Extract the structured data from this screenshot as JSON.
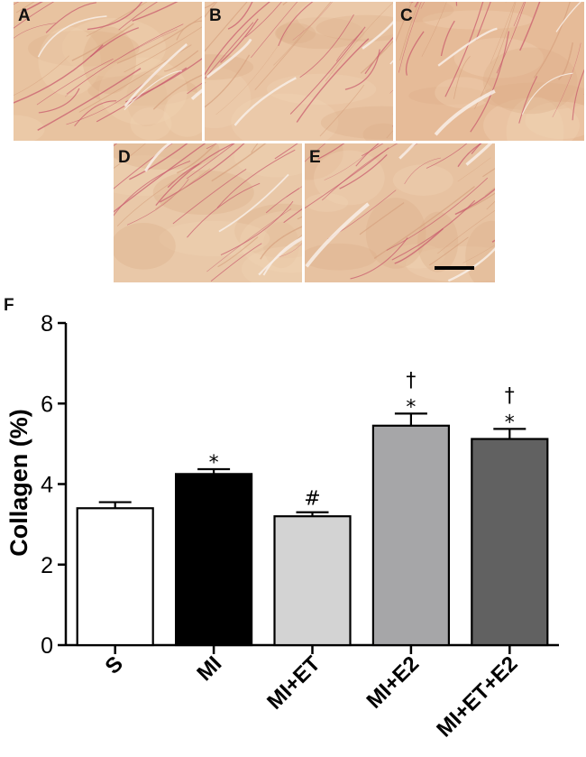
{
  "panels": [
    {
      "letter": "A",
      "tissue_color": "#e8c3a0"
    },
    {
      "letter": "B",
      "tissue_color": "#e9c4a3"
    },
    {
      "letter": "C",
      "tissue_color": "#e6bb98"
    },
    {
      "letter": "D",
      "tissue_color": "#e9c8a8"
    },
    {
      "letter": "E",
      "tissue_color": "#e7c2a1"
    }
  ],
  "figure_label": "F",
  "chart_data": {
    "type": "bar",
    "categories": [
      "S",
      "MI",
      "MI+ET",
      "MI+E2",
      "MI+ET+E2"
    ],
    "values": [
      3.4,
      4.25,
      3.2,
      5.45,
      5.12
    ],
    "errors": [
      0.15,
      0.12,
      0.1,
      0.3,
      0.25
    ],
    "annotations": [
      "",
      "*",
      "#",
      "†\n*",
      "†\n*"
    ],
    "colors": [
      "#ffffff",
      "#000000",
      "#d3d3d3",
      "#a6a6a8",
      "#616161"
    ],
    "ylabel": "Collagen (%)",
    "ylim": [
      0,
      8
    ],
    "yticks": [
      0,
      2,
      4,
      6,
      8
    ]
  }
}
